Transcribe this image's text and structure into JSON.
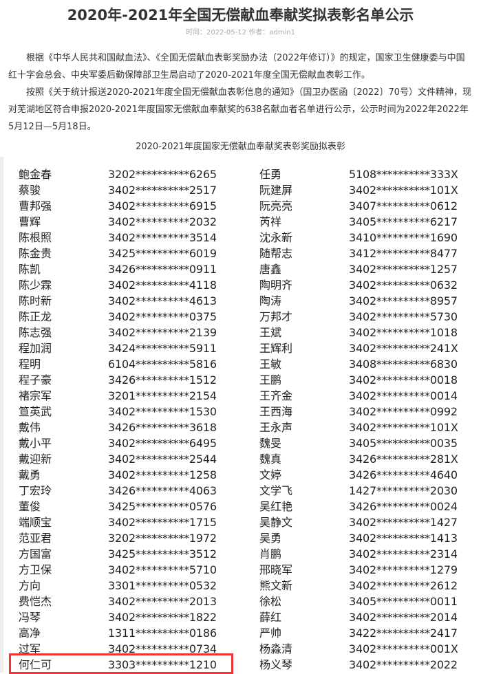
{
  "article": {
    "title": "2020年-2021年全国无偿献血奉献奖拟表彰名单公示",
    "meta": "时间：2022-05-12 作者：admin1",
    "paragraphs": [
      "根据《中华人民共和国献血法》、《全国无偿献血表彰奖励办法（2022年修订）》的规定，国家卫生健康委与中国红十字会总会、中央军委后勤保障部卫生局启动了2020-2021年度全国无偿献血表彰工作。",
      "按照《关于统计报送2020-2021年度全国无偿献血表彰信息的通知》（国卫办医函〔2022〕70号）文件精神，现对芜湖地区符合申报2020-2021年度国家无偿献血奉献奖的638名献血者名单进行公示，公示时间为2022年2022年5月12日—5月18日。"
    ],
    "table_caption": "2020-2021年度国家无偿献血奉献奖表彰奖励拟表彰"
  },
  "highlight_color": "#f03333",
  "highlighted_row": "何仁可",
  "left_column": [
    [
      "鲍金春",
      "3202**********6265"
    ],
    [
      "蔡骏",
      "3402**********2517"
    ],
    [
      "曹邦强",
      "3402**********6915"
    ],
    [
      "曹辉",
      "3402**********2032"
    ],
    [
      "陈根照",
      "3402**********3514"
    ],
    [
      "陈金贵",
      "3425**********6019"
    ],
    [
      "陈凯",
      "3426**********0911"
    ],
    [
      "陈少霖",
      "3402**********4118"
    ],
    [
      "陈时新",
      "3402**********4613"
    ],
    [
      "陈正龙",
      "3402**********0375"
    ],
    [
      "陈志强",
      "3402**********2139"
    ],
    [
      "程加润",
      "3424**********5911"
    ],
    [
      "程明",
      "6104**********5816"
    ],
    [
      "程子豪",
      "3426**********1512"
    ],
    [
      "褚宗军",
      "3201**********2154"
    ],
    [
      "笪英武",
      "3402**********1530"
    ],
    [
      "戴伟",
      "3426**********3618"
    ],
    [
      "戴小平",
      "3402**********6495"
    ],
    [
      "戴迎新",
      "3402**********2544"
    ],
    [
      "戴勇",
      "3402**********1258"
    ],
    [
      "丁宏玲",
      "3426**********4063"
    ],
    [
      "董俊",
      "3425**********0576"
    ],
    [
      "端顺宝",
      "3402**********1715"
    ],
    [
      "范亚君",
      "3202**********1972"
    ],
    [
      "方国富",
      "3425**********3512"
    ],
    [
      "方卫保",
      "3402**********5710"
    ],
    [
      "方向",
      "3301**********0532"
    ],
    [
      "费恺杰",
      "3402**********2013"
    ],
    [
      "冯琴",
      "3402**********1822"
    ],
    [
      "高净",
      "1311**********0186"
    ],
    [
      "过军",
      "3402**********0734"
    ],
    [
      "何仁可",
      "3303**********1210"
    ]
  ],
  "right_column": [
    [
      "任勇",
      "5108**********333X"
    ],
    [
      "阮建屏",
      "3402**********101X"
    ],
    [
      "阮亮亮",
      "3407**********0612"
    ],
    [
      "芮祥",
      "3405**********6217"
    ],
    [
      "沈永新",
      "3410**********1690"
    ],
    [
      "随帮志",
      "3412**********8477"
    ],
    [
      "唐鑫",
      "3402**********1257"
    ],
    [
      "陶明齐",
      "3402**********0632"
    ],
    [
      "陶涛",
      "3402**********8957"
    ],
    [
      "万邦才",
      "3402**********5730"
    ],
    [
      "王斌",
      "3402**********1018"
    ],
    [
      "王辉利",
      "3402**********241X"
    ],
    [
      "王敏",
      "3408**********6830"
    ],
    [
      "王鹏",
      "3402**********0018"
    ],
    [
      "王齐金",
      "3402**********0014"
    ],
    [
      "王西海",
      "3402**********0992"
    ],
    [
      "王永声",
      "3402**********101X"
    ],
    [
      "魏旻",
      "3405**********0035"
    ],
    [
      "魏真",
      "3426**********281X"
    ],
    [
      "文婷",
      "3426**********4640"
    ],
    [
      "文学飞",
      "1427**********2030"
    ],
    [
      "吴红艳",
      "3426**********0024"
    ],
    [
      "吴静文",
      "3402**********1427"
    ],
    [
      "吴勇",
      "3402**********1413"
    ],
    [
      "肖鹏",
      "3402**********2314"
    ],
    [
      "邢晓军",
      "3402**********1279"
    ],
    [
      "熊文新",
      "3402**********2612"
    ],
    [
      "徐松",
      "3405**********0011"
    ],
    [
      "薛红",
      "3402**********2014"
    ],
    [
      "严帅",
      "3422**********2417"
    ],
    [
      "杨淼清",
      "3402**********001X"
    ],
    [
      "杨义琴",
      "3402**********2022"
    ]
  ]
}
